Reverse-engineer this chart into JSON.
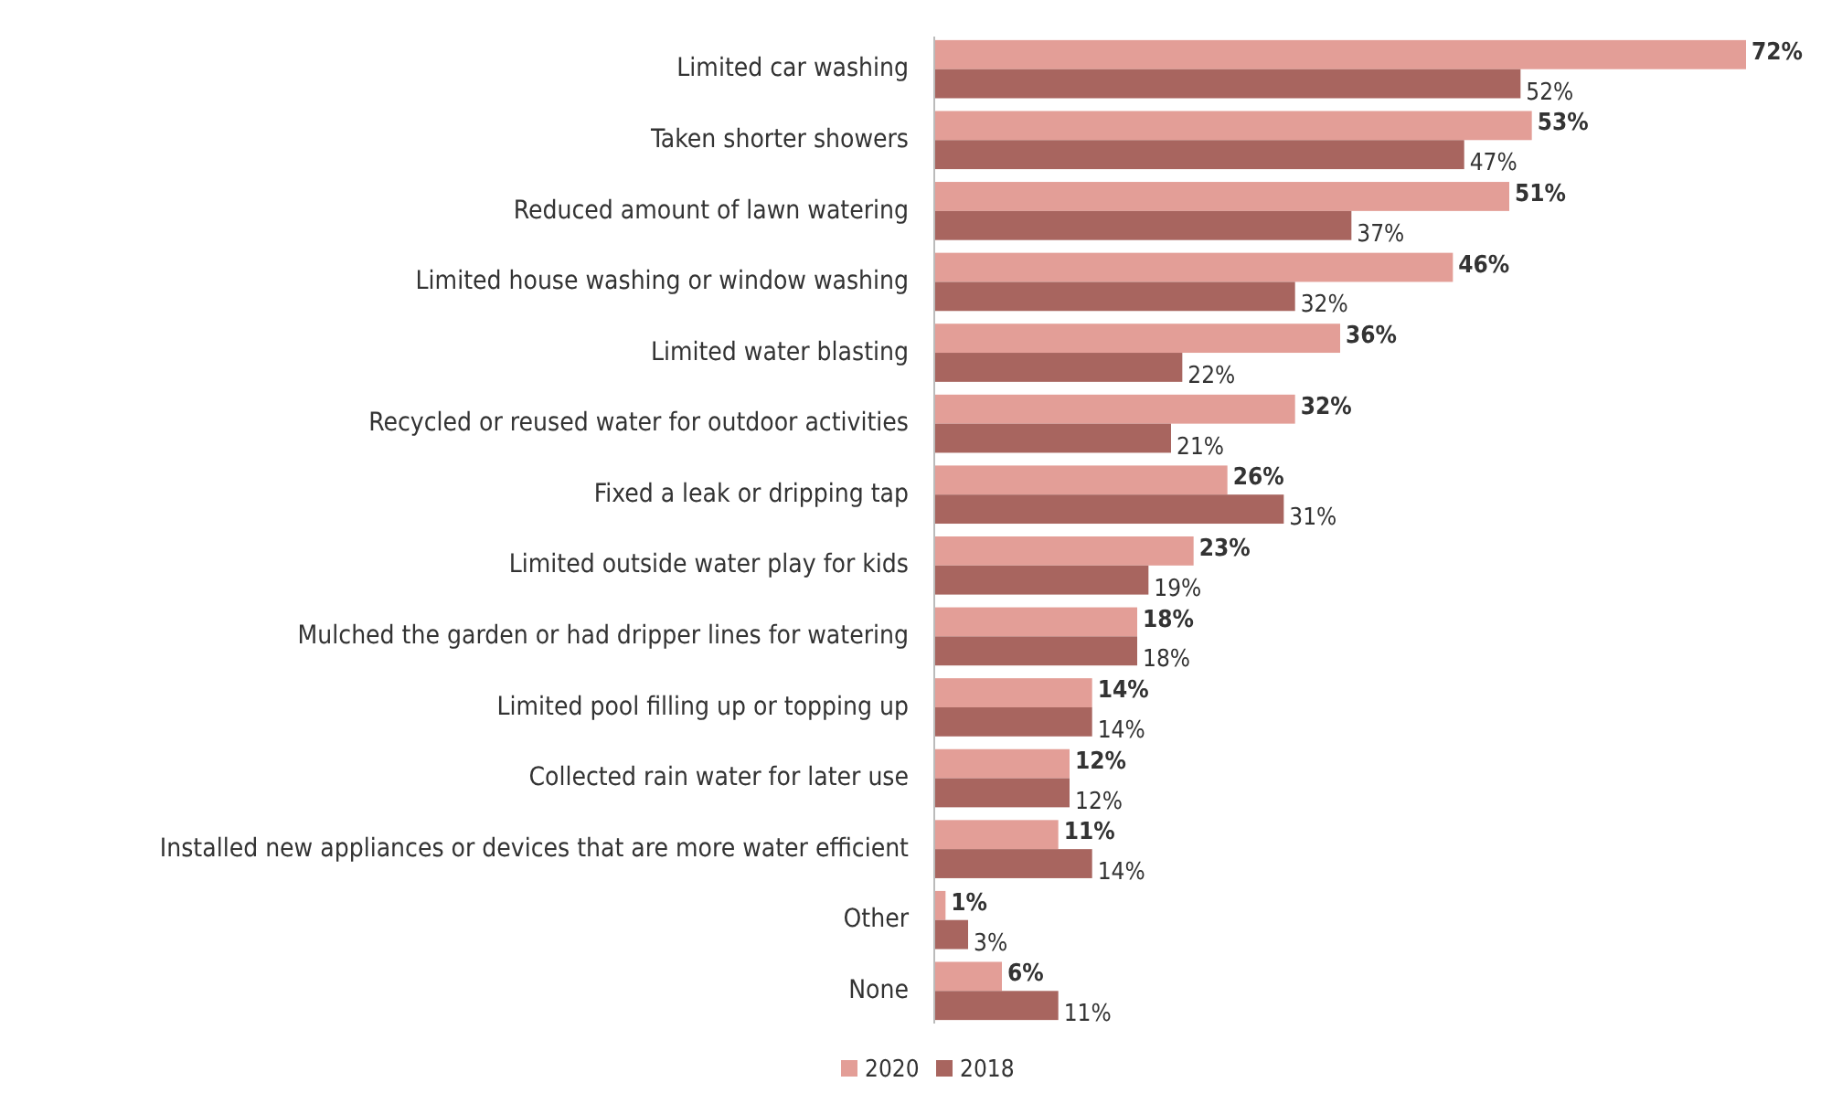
{
  "chart_data": {
    "type": "bar",
    "orientation": "horizontal",
    "categories": [
      "Limited car washing",
      "Taken shorter showers",
      "Reduced amount of lawn watering",
      "Limited house washing or window washing",
      "Limited water blasting",
      "Recycled or reused water for outdoor activities",
      "Fixed a leak or dripping tap",
      "Limited outside water play for kids",
      "Mulched the garden or had dripper lines for watering",
      "Limited pool filling up or topping up",
      "Collected rain water for later use",
      "Installed new appliances or devices that are more water efficient",
      "Other",
      "None"
    ],
    "series": [
      {
        "name": "2020",
        "color": "#e39e97",
        "values": [
          72,
          53,
          51,
          46,
          36,
          32,
          26,
          23,
          18,
          14,
          12,
          11,
          1,
          6
        ],
        "value_labels": [
          "72%",
          "53%",
          "51%",
          "46%",
          "36%",
          "32%",
          "26%",
          "23%",
          "18%",
          "14%",
          "12%",
          "11%",
          "1%",
          "6%"
        ]
      },
      {
        "name": "2018",
        "color": "#a8655f",
        "values": [
          52,
          47,
          37,
          32,
          22,
          21,
          31,
          19,
          18,
          14,
          12,
          14,
          3,
          11
        ],
        "value_labels": [
          "52%",
          "47%",
          "37%",
          "32%",
          "22%",
          "21%",
          "31%",
          "19%",
          "18%",
          "14%",
          "12%",
          "14%",
          "3%",
          "11%"
        ]
      }
    ],
    "legend": "bottom",
    "grid": false
  }
}
